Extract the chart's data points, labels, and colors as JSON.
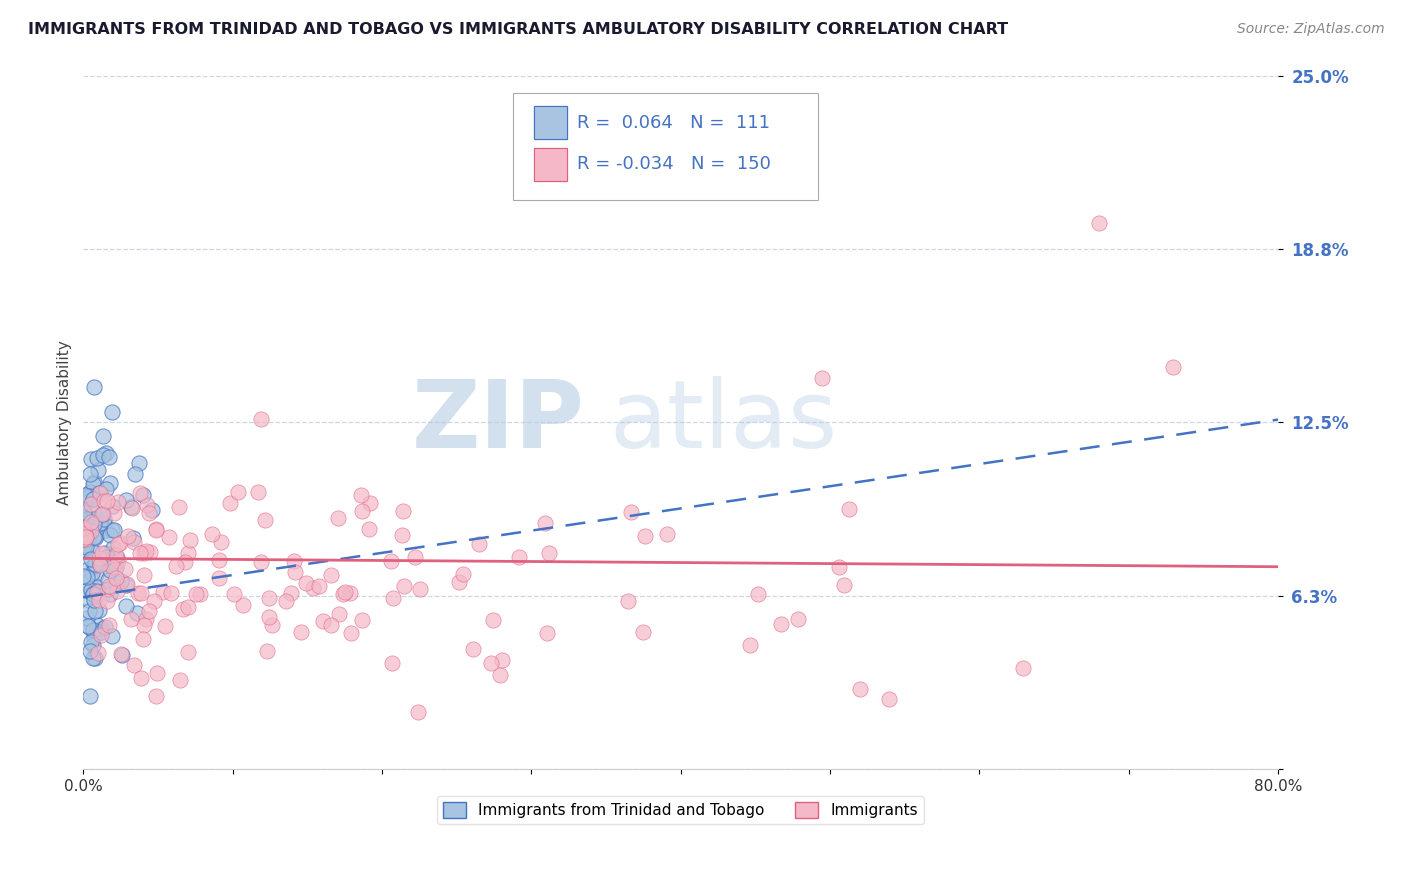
{
  "title": "IMMIGRANTS FROM TRINIDAD AND TOBAGO VS IMMIGRANTS AMBULATORY DISABILITY CORRELATION CHART",
  "source": "Source: ZipAtlas.com",
  "ylabel": "Ambulatory Disability",
  "legend_label_1": "Immigrants from Trinidad and Tobago",
  "legend_label_2": "Immigrants",
  "r1": 0.064,
  "n1": 111,
  "r2": -0.034,
  "n2": 150,
  "color_blue_fill": "#a8c4e0",
  "color_blue_edge": "#4472c4",
  "color_pink_fill": "#f4b8c8",
  "color_pink_edge": "#e06080",
  "color_text_blue": "#4472c4",
  "xlim": [
    0.0,
    0.8
  ],
  "ylim": [
    0.0,
    0.25
  ],
  "yticks": [
    0.0,
    0.0625,
    0.125,
    0.1875,
    0.25
  ],
  "ytick_labels": [
    "",
    "6.3%",
    "12.5%",
    "18.8%",
    "25.0%"
  ],
  "xticks": [
    0.0,
    0.1,
    0.2,
    0.3,
    0.4,
    0.5,
    0.6,
    0.7,
    0.8
  ],
  "xtick_labels": [
    "0.0%",
    "",
    "",
    "",
    "",
    "",
    "",
    "",
    "80.0%"
  ],
  "watermark_zip": "ZIP",
  "watermark_atlas": "atlas",
  "background_color": "#ffffff",
  "grid_color": "#c8d8e8",
  "blue_trend_start_y": 0.062,
  "blue_trend_end_y": 0.126,
  "pink_trend_start_y": 0.076,
  "pink_trend_end_y": 0.073
}
